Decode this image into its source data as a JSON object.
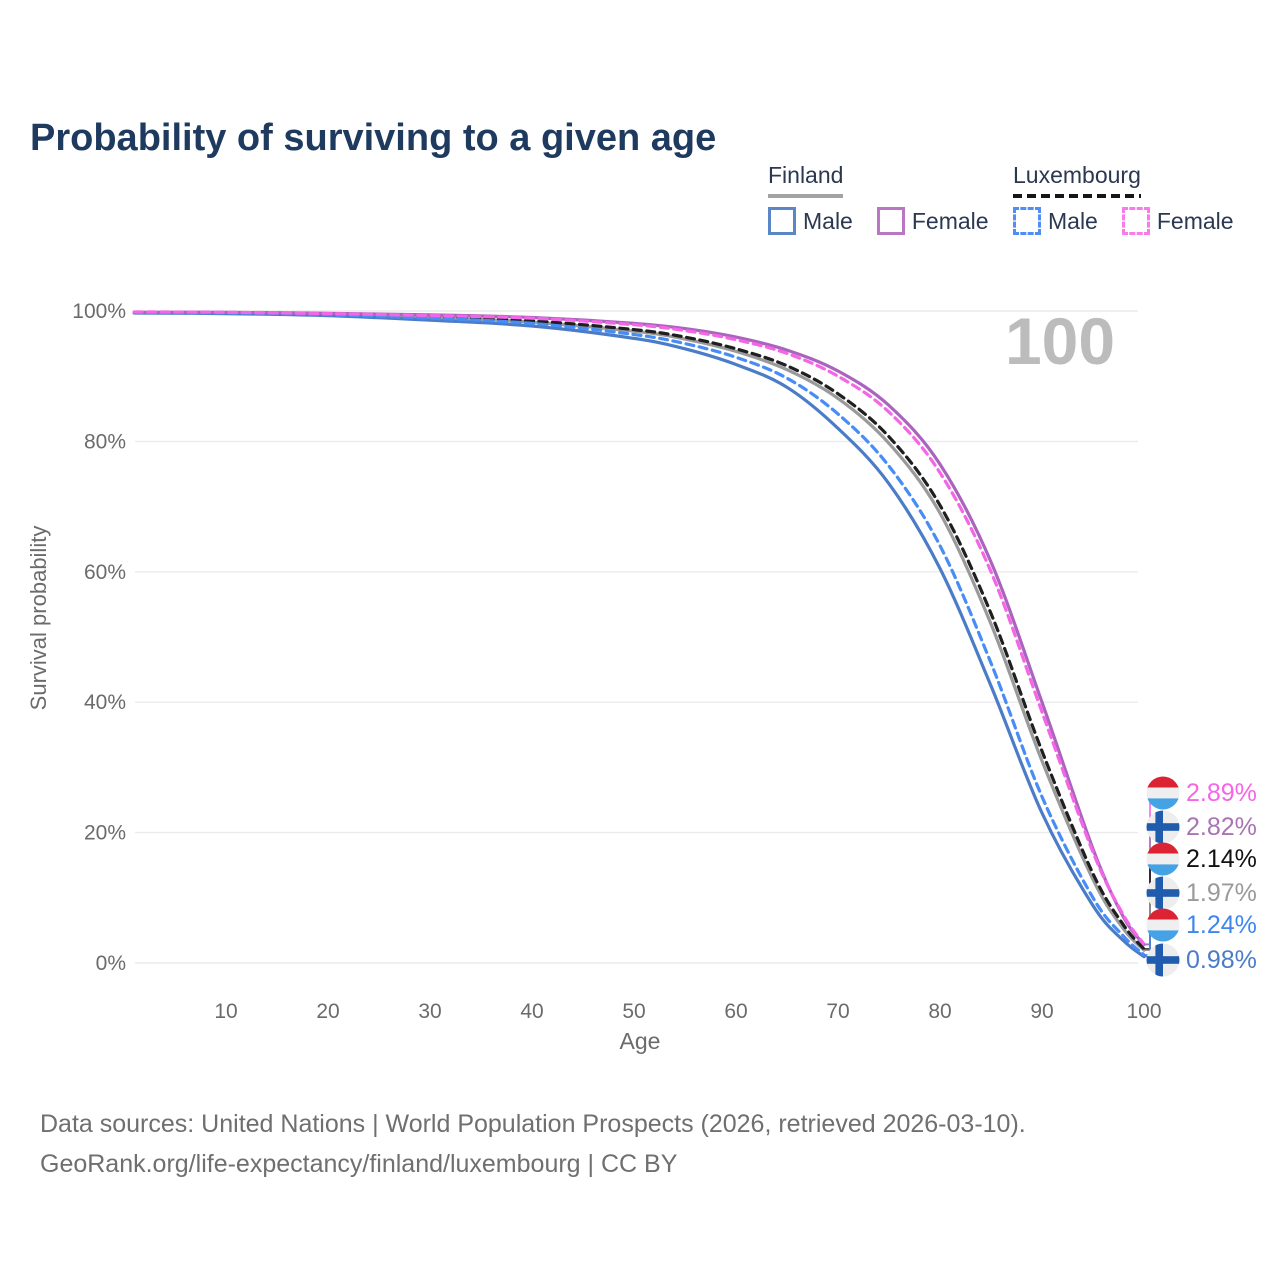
{
  "title": "Probability of surviving to a given age",
  "legend": {
    "finland": {
      "label": "Finland",
      "male": "Male",
      "female": "Female"
    },
    "luxembourg": {
      "label": "Luxembourg",
      "male": "Male",
      "female": "Female"
    }
  },
  "caption": {
    "line1": "Data sources: United Nations | World Population Prospects (2026, retrieved 2026-03-10).",
    "line2": "GeoRank.org/life-expectancy/finland/luxembourg | CC BY"
  },
  "colors": {
    "title": "#1e3a5f",
    "finland_male": "#4a7cc7",
    "luxembourg_male": "#478df5",
    "finland_total": "#9a9a9a",
    "luxembourg_total": "#1f1f1f",
    "finland_female": "#ab64bd",
    "luxembourg_female": "#f566e6",
    "grid": "#ebebeb",
    "axis_text": "#6b6b6b",
    "watermark": "#bcbcbc"
  },
  "chart_data": {
    "type": "line",
    "title": "Probability of surviving to a given age",
    "xlabel": "Age",
    "ylabel": "Survival probability",
    "xlim": [
      1,
      100
    ],
    "ylim": [
      0,
      100
    ],
    "grid": "horizontal-only",
    "x_ticks": [
      "10",
      "20",
      "30",
      "40",
      "50",
      "60",
      "70",
      "80",
      "90",
      "100"
    ],
    "y_ticks": [
      "100%",
      "80%",
      "60%",
      "40%",
      "20%",
      "0%"
    ],
    "y_tick_values": [
      100,
      80,
      60,
      40,
      20,
      0
    ],
    "annotation": "100",
    "ages": [
      1,
      10,
      20,
      30,
      40,
      50,
      55,
      60,
      65,
      70,
      75,
      80,
      85,
      90,
      95,
      98,
      100
    ],
    "series": [
      {
        "id": "finland_total",
        "name": "Finland (both sexes)",
        "country": "Finland",
        "dash": "solid",
        "color": "#9a9a9a",
        "end_value_pct": 1.97,
        "end_label": "1.97%",
        "values": [
          99.75,
          99.7,
          99.5,
          99.0,
          98.3,
          96.9,
          95.7,
          93.8,
          91.0,
          86.6,
          79.7,
          69.0,
          52.0,
          31.0,
          12.8,
          5.2,
          1.97
        ]
      },
      {
        "id": "luxembourg_total",
        "name": "Luxembourg (both sexes)",
        "country": "Luxembourg",
        "dash": "dashed",
        "color": "#1f1f1f",
        "end_value_pct": 2.14,
        "end_label": "2.14%",
        "values": [
          99.8,
          99.75,
          99.55,
          99.15,
          98.5,
          97.15,
          96.0,
          94.2,
          91.6,
          87.3,
          80.7,
          70.2,
          53.6,
          32.5,
          13.7,
          5.8,
          2.14
        ]
      },
      {
        "id": "finland_male",
        "name": "Finland Male",
        "country": "Finland",
        "dash": "solid",
        "color": "#4a7cc7",
        "end_value_pct": 0.98,
        "end_label": "0.98%",
        "values": [
          99.7,
          99.6,
          99.3,
          98.6,
          97.7,
          95.8,
          94.2,
          91.8,
          88.3,
          82.0,
          73.5,
          60.5,
          42.5,
          23.0,
          8.8,
          3.4,
          0.98
        ]
      },
      {
        "id": "luxembourg_male",
        "name": "Luxembourg Male",
        "country": "Luxembourg",
        "dash": "dashed",
        "color": "#478df5",
        "end_value_pct": 1.24,
        "end_label": "1.24%",
        "values": [
          99.8,
          99.7,
          99.4,
          98.9,
          98.1,
          96.4,
          95.0,
          92.9,
          89.7,
          84.2,
          76.2,
          64.0,
          46.0,
          25.5,
          10.0,
          4.1,
          1.24
        ]
      },
      {
        "id": "finland_female",
        "name": "Finland Female",
        "country": "Finland",
        "dash": "solid",
        "color": "#ab64bd",
        "end_value_pct": 2.82,
        "end_label": "2.82%",
        "values": [
          99.8,
          99.8,
          99.65,
          99.4,
          99.0,
          98.1,
          97.3,
          96.0,
          94.0,
          90.8,
          85.5,
          76.5,
          61.5,
          40.0,
          17.5,
          7.0,
          2.82
        ]
      },
      {
        "id": "luxembourg_female",
        "name": "Luxembourg Female",
        "country": "Luxembourg",
        "dash": "dashed",
        "color": "#f566e6",
        "end_value_pct": 2.89,
        "end_label": "2.89%",
        "values": [
          99.85,
          99.8,
          99.6,
          99.3,
          98.9,
          97.9,
          97.0,
          95.6,
          93.5,
          90.0,
          84.5,
          75.2,
          60.0,
          38.5,
          17.0,
          7.3,
          2.89
        ]
      }
    ],
    "end_labels_top_to_bottom": [
      {
        "series": "luxembourg_female",
        "flag": "luxembourg",
        "text": "2.89%",
        "color": "#f566e6"
      },
      {
        "series": "finland_female",
        "flag": "finland",
        "text": "2.82%",
        "color": "#a874b3"
      },
      {
        "series": "luxembourg_total",
        "flag": "luxembourg",
        "text": "2.14%",
        "color": "#111111"
      },
      {
        "series": "finland_total",
        "flag": "finland",
        "text": "1.97%",
        "color": "#9a9a9a"
      },
      {
        "series": "luxembourg_male",
        "flag": "luxembourg",
        "text": "1.24%",
        "color": "#3d86f0"
      },
      {
        "series": "finland_male",
        "flag": "finland",
        "text": "0.98%",
        "color": "#4a7cc7"
      }
    ],
    "legend_position": "top-right"
  }
}
